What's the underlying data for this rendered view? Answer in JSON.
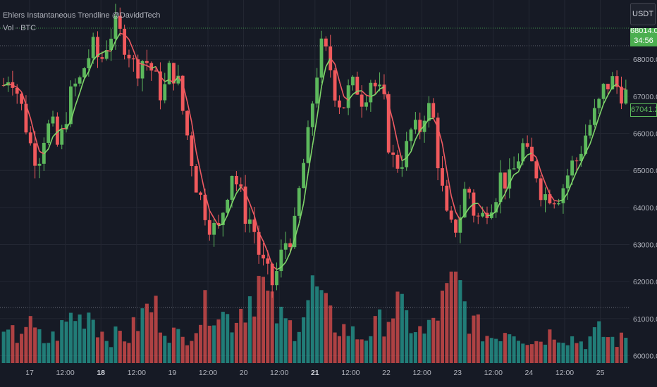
{
  "header": {
    "indicator_title": "Ehlers Instantaneous Trendline @DaviddTech",
    "volume_label": "Vol · BTC",
    "currency_button": "USDT",
    "live_price_partial": "68014.0",
    "countdown": "34:56"
  },
  "last_price_label": "67041.2",
  "colors": {
    "background": "#161a25",
    "grid": "#232733",
    "up": "#26a69a",
    "down": "#ef5350",
    "up_candle": "#5cb85c",
    "down_candle": "#f0595c",
    "trend_up": "#7fd66a",
    "trend_down": "#f05a62",
    "vol_up": "#26a69a",
    "vol_down": "#ef5350"
  },
  "chart_data": {
    "type": "candlestick",
    "title": "Ehlers Instantaneous Trendline @DaviddTech",
    "x_ticks": [
      "17",
      "12:00",
      "18",
      "12:00",
      "19",
      "12:00",
      "20",
      "12:00",
      "21",
      "12:00",
      "22",
      "12:00",
      "23",
      "12:00",
      "24",
      "12:00",
      "25"
    ],
    "bold_x_ticks": [
      "18",
      "21",
      "25"
    ],
    "y_ticks": [
      "68000.0",
      "67000.0",
      "66000.0",
      "65000.0",
      "64000.0",
      "63000.0",
      "62000.0",
      "61000.0",
      "60000.0"
    ],
    "ylim": [
      59800,
      69600
    ],
    "close_path": [
      67300,
      67700,
      67100,
      66400,
      65600,
      65300,
      66100,
      66200,
      65500,
      66500,
      67200,
      67400,
      68000,
      68300,
      67900,
      68500,
      68900,
      68600,
      68300,
      67700,
      68000,
      67900,
      67400,
      67000,
      67700,
      67600,
      66500,
      65500,
      64500,
      64000,
      63500,
      63300,
      64200,
      65000,
      64500,
      63800,
      63600,
      62700,
      62200,
      61900,
      62600,
      63200,
      63300,
      64800,
      65800,
      67400,
      68300,
      68000,
      67100,
      66700,
      67200,
      67300,
      66900,
      67500,
      67200,
      66800,
      65300,
      65200,
      65400,
      66100,
      66000,
      66700,
      66600,
      65000,
      63700,
      63300,
      63800,
      64700,
      63900,
      63600,
      64100,
      64300,
      64900,
      64600,
      65100,
      65700,
      65200,
      65000,
      64300,
      64400,
      64300,
      64600,
      65100,
      65300,
      65900,
      66300,
      66700,
      67300,
      67400,
      67200,
      67041.2
    ],
    "volume_ylim": [
      0,
      1
    ],
    "volume_levels": [
      0.25,
      0.32,
      0.28,
      0.45,
      0.38,
      0.3,
      0.22,
      0.27,
      0.35,
      0.42,
      0.55,
      0.48,
      0.6,
      0.52,
      0.35,
      0.3,
      0.28,
      0.33,
      0.26,
      0.4,
      0.5,
      0.62,
      0.58,
      0.45,
      0.36,
      0.3,
      0.25,
      0.38,
      0.45,
      0.55,
      0.7,
      0.62,
      0.5,
      0.48,
      0.58,
      0.66,
      0.78,
      0.92,
      0.72,
      0.55,
      0.48,
      0.42,
      0.38,
      0.52,
      0.68,
      0.85,
      0.65,
      0.5,
      0.42,
      0.38,
      0.35,
      0.3,
      0.28,
      0.34,
      0.4,
      0.48,
      0.55,
      0.62,
      0.5,
      0.42,
      0.36,
      0.3,
      0.45,
      0.58,
      0.7,
      0.99,
      0.8,
      0.55,
      0.42,
      0.36,
      0.3,
      0.28,
      0.34,
      0.4,
      0.36,
      0.3,
      0.26,
      0.24,
      0.28,
      0.32,
      0.36,
      0.3,
      0.28,
      0.25,
      0.22,
      0.28,
      0.34,
      0.3,
      0.26,
      0.24,
      0.27
    ]
  }
}
